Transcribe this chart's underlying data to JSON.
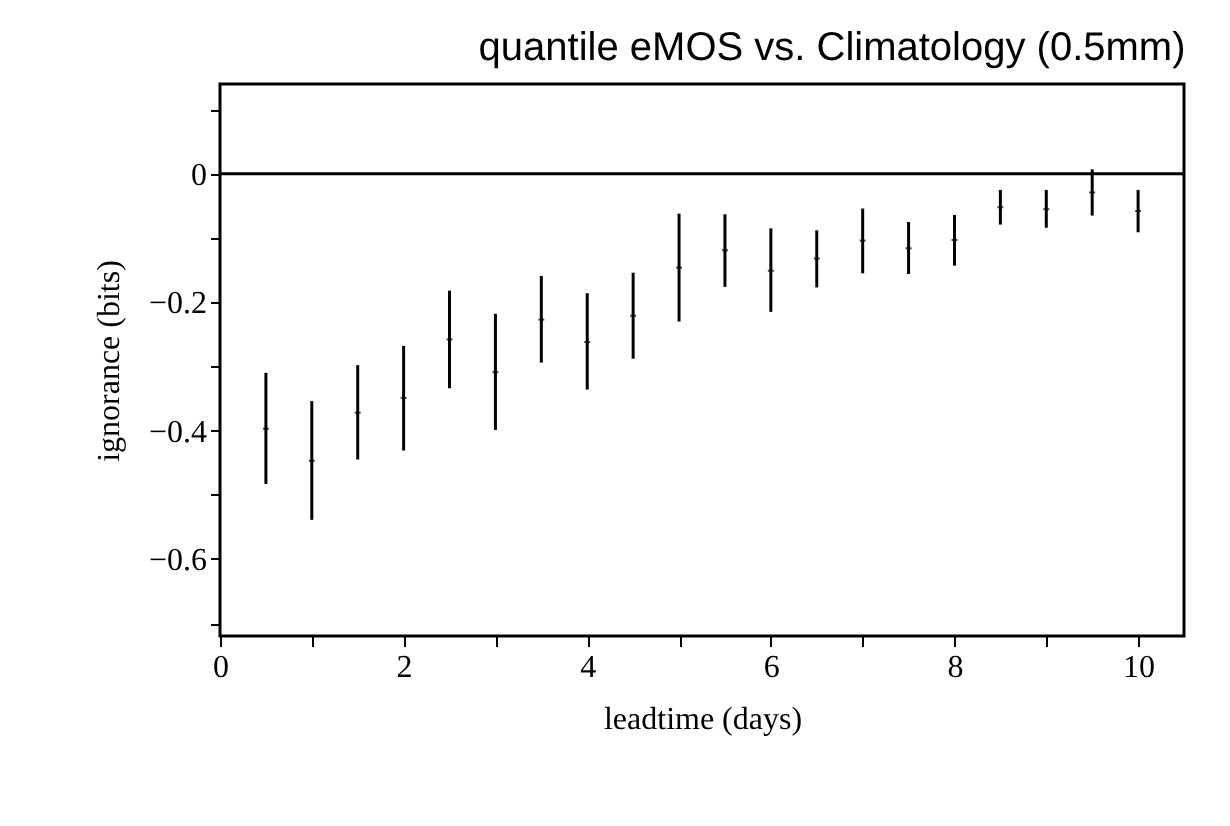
{
  "chart_data": {
    "type": "scatter",
    "title": "quantile eMOS vs. Climatology (0.5mm)",
    "xlabel": "leadtime (days)",
    "ylabel": "ignorance (bits)",
    "x": [
      0.5,
      1,
      1.5,
      2,
      2.5,
      3,
      3.5,
      4,
      4.5,
      5,
      5.5,
      6,
      6.5,
      7,
      7.5,
      8,
      8.5,
      9,
      9.5,
      10
    ],
    "series": [
      {
        "color": "#000000",
        "values": [
          -0.397,
          -0.447,
          -0.372,
          -0.349,
          -0.258,
          -0.309,
          -0.227,
          -0.262,
          -0.221,
          -0.146,
          -0.119,
          -0.151,
          -0.132,
          -0.104,
          -0.116,
          -0.103,
          -0.052,
          -0.055,
          -0.029,
          -0.058
        ],
        "errors": [
          [
            -0.483,
            -0.31
          ],
          [
            -0.539,
            -0.354
          ],
          [
            -0.445,
            -0.298
          ],
          [
            -0.431,
            -0.268
          ],
          [
            -0.334,
            -0.182
          ],
          [
            -0.399,
            -0.218
          ],
          [
            -0.294,
            -0.159
          ],
          [
            -0.336,
            -0.186
          ],
          [
            -0.288,
            -0.154
          ],
          [
            -0.23,
            -0.062
          ],
          [
            -0.176,
            -0.063
          ],
          [
            -0.215,
            -0.085
          ],
          [
            -0.177,
            -0.088
          ],
          [
            -0.155,
            -0.054
          ],
          [
            -0.156,
            -0.075
          ],
          [
            -0.143,
            -0.064
          ],
          [
            -0.079,
            -0.025
          ],
          [
            -0.084,
            -0.025
          ],
          [
            -0.065,
            0.007
          ],
          [
            -0.091,
            -0.025
          ]
        ]
      }
    ],
    "xlim": [
      0,
      10.5
    ],
    "ylim": [
      -0.72,
      0.14
    ],
    "xticks": [
      0,
      {
        "value": 1,
        "label": null
      },
      2,
      {
        "value": 3,
        "label": null
      },
      4,
      {
        "value": 5,
        "label": null
      },
      6,
      {
        "value": 7,
        "label": null
      },
      8,
      {
        "value": 9,
        "label": null
      },
      10
    ],
    "yticks": [
      {
        "value": 0.1,
        "label": null
      },
      0,
      {
        "value": -0.1,
        "label": null
      },
      {
        "value": -0.2,
        "label": "−0.2"
      },
      {
        "value": -0.3,
        "label": null
      },
      {
        "value": -0.4,
        "label": "−0.4"
      },
      {
        "value": -0.5,
        "label": null
      },
      {
        "value": -0.6,
        "label": "−0.6"
      },
      {
        "value": -0.7,
        "label": null
      }
    ],
    "ref_lines": [
      {
        "axis": "y",
        "value": 0,
        "color": "#000000",
        "line_style": "solid"
      }
    ],
    "grid": false
  }
}
